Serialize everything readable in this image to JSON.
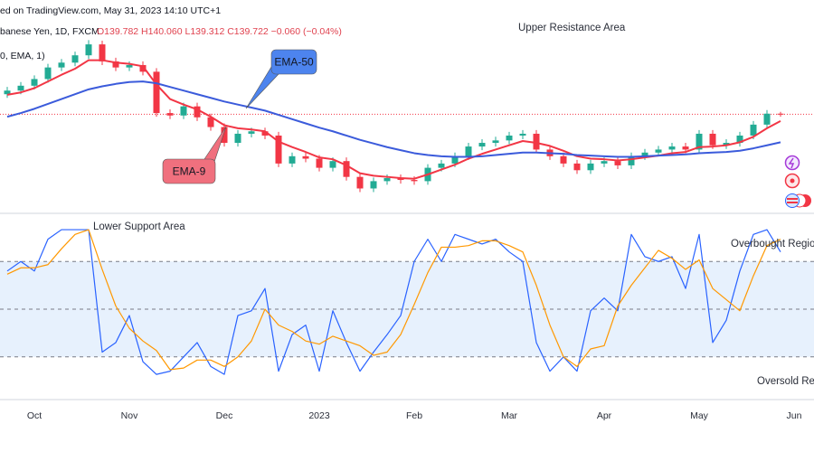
{
  "header": {
    "source": "ed on TradingView.com, May 31, 2023 14:10 UTC+1",
    "symbol": "banese Yen, 1D, FXCM",
    "ohlc": "O139.782 H140.060 L139.312 C139.722 −0.060 (−0.04%)",
    "indicator": "0, EMA, 1)"
  },
  "chart_data": [
    {
      "type": "candlestick",
      "categories": [
        null,
        null,
        "Oct",
        null,
        null,
        null,
        null,
        null,
        null,
        "Nov",
        null,
        null,
        null,
        null,
        null,
        null,
        "Dec",
        null,
        null,
        null,
        null,
        null,
        null,
        "2023",
        null,
        null,
        null,
        null,
        null,
        null,
        "Feb",
        null,
        null,
        null,
        null,
        null,
        null,
        "Mar",
        null,
        null,
        null,
        null,
        null,
        null,
        "Apr",
        null,
        null,
        null,
        null,
        null,
        null,
        "May",
        null,
        null,
        null,
        null,
        null,
        null,
        "Jun"
      ],
      "open": [
        143.0,
        143.6,
        144.4,
        145.5,
        147.4,
        148.2,
        149.4,
        151.2,
        148.4,
        147.4,
        147.8,
        146.7,
        139.9,
        139.5,
        141.0,
        139.2,
        137.6,
        135.0,
        136.5,
        136.9,
        136.2,
        131.6,
        132.8,
        132.4,
        130.9,
        132.0,
        129.4,
        127.5,
        128.7,
        129.2,
        128.9,
        128.7,
        130.9,
        131.6,
        132.8,
        134.4,
        135.0,
        135.4,
        136.2,
        136.5,
        133.9,
        132.8,
        131.6,
        130.5,
        131.6,
        132.0,
        131.3,
        132.8,
        133.4,
        133.9,
        134.4,
        133.9,
        136.5,
        134.6,
        135.0,
        136.2,
        138.0,
        139.8,
        null
      ],
      "high": [
        144.2,
        145.0,
        146.1,
        148.0,
        148.8,
        150.0,
        151.9,
        151.8,
        149.0,
        148.4,
        148.4,
        147.3,
        140.5,
        141.6,
        141.6,
        139.8,
        138.2,
        137.1,
        137.5,
        137.5,
        136.8,
        133.4,
        133.4,
        133.0,
        132.6,
        132.6,
        130.0,
        129.3,
        129.8,
        129.8,
        129.5,
        131.5,
        132.2,
        133.4,
        135.0,
        135.6,
        136.0,
        136.8,
        137.1,
        137.1,
        134.5,
        133.4,
        132.2,
        132.2,
        132.6,
        132.6,
        133.4,
        134.0,
        134.5,
        135.0,
        135.0,
        137.1,
        137.1,
        135.6,
        136.8,
        138.6,
        140.4,
        140.1,
        null
      ],
      "low": [
        142.4,
        143.0,
        143.8,
        144.9,
        146.8,
        147.6,
        148.8,
        147.8,
        146.8,
        146.8,
        146.1,
        139.3,
        138.9,
        138.9,
        138.6,
        137.0,
        134.4,
        134.4,
        135.9,
        135.6,
        131.0,
        131.0,
        131.8,
        130.3,
        130.3,
        128.8,
        126.9,
        126.9,
        128.1,
        128.3,
        128.1,
        128.1,
        130.3,
        131.0,
        132.2,
        133.8,
        134.4,
        134.8,
        135.6,
        133.3,
        132.2,
        131.0,
        129.9,
        129.9,
        131.0,
        130.7,
        130.7,
        132.2,
        132.8,
        133.3,
        133.3,
        133.3,
        134.0,
        134.0,
        134.4,
        135.6,
        137.4,
        139.3,
        null
      ],
      "close": [
        143.6,
        144.4,
        145.5,
        147.4,
        148.2,
        149.4,
        151.2,
        148.4,
        147.4,
        147.8,
        146.7,
        139.9,
        139.5,
        141.0,
        139.2,
        137.6,
        135.0,
        136.5,
        136.9,
        136.2,
        131.6,
        132.8,
        132.4,
        130.9,
        132.0,
        129.4,
        127.5,
        128.7,
        129.2,
        128.9,
        128.7,
        130.9,
        131.6,
        132.8,
        134.4,
        135.0,
        135.4,
        136.2,
        136.5,
        133.9,
        132.8,
        131.6,
        130.5,
        131.6,
        132.0,
        131.3,
        132.8,
        133.4,
        133.9,
        134.4,
        133.9,
        136.5,
        134.6,
        135.0,
        136.2,
        138.0,
        139.8,
        139.7,
        null
      ],
      "up_color": "#22ab94",
      "down_color": "#f23645",
      "ylim": [
        124,
        158.5
      ],
      "price_line": true,
      "series": [
        {
          "name": "EMA-9",
          "color": "#f23645",
          "values": [
            142.9,
            143.3,
            144.0,
            145.1,
            146.2,
            147.2,
            148.6,
            148.6,
            148.2,
            148.0,
            147.6,
            144.6,
            142.2,
            141.3,
            140.5,
            139.3,
            137.9,
            137.4,
            137.2,
            136.9,
            135.2,
            134.3,
            133.5,
            132.6,
            132.3,
            131.3,
            130.0,
            129.6,
            129.4,
            129.2,
            129.1,
            129.8,
            130.6,
            131.4,
            132.4,
            133.2,
            133.9,
            134.6,
            135.3,
            135.0,
            134.5,
            133.7,
            132.8,
            132.4,
            132.3,
            132.1,
            132.3,
            132.6,
            132.9,
            133.3,
            133.5,
            134.3,
            134.4,
            134.6,
            135.1,
            136.0,
            137.4,
            138.6,
            null
          ]
        },
        {
          "name": "EMA-50",
          "color": "#3b5bdb",
          "values": [
            139.3,
            139.9,
            140.6,
            141.4,
            142.2,
            143.0,
            143.8,
            144.3,
            144.7,
            145.0,
            145.1,
            144.8,
            144.2,
            143.6,
            143.0,
            142.4,
            141.8,
            141.3,
            140.8,
            140.3,
            139.6,
            138.9,
            138.2,
            137.5,
            136.9,
            136.2,
            135.5,
            134.9,
            134.3,
            133.8,
            133.3,
            133.0,
            132.8,
            132.7,
            132.7,
            132.8,
            133.0,
            133.2,
            133.4,
            133.4,
            133.3,
            133.2,
            133.0,
            132.9,
            132.8,
            132.7,
            132.7,
            132.8,
            132.9,
            133.0,
            133.1,
            133.3,
            133.4,
            133.5,
            133.7,
            134.1,
            134.6,
            135.1,
            null
          ]
        }
      ],
      "annotations": [
        "Upper Resistance Area"
      ]
    },
    {
      "type": "line",
      "ylim": [
        -4,
        108
      ],
      "levels": [
        20,
        50,
        80
      ],
      "series": [
        {
          "color": "#2962ff",
          "values": [
            74,
            80,
            74,
            94,
            100,
            100,
            100,
            23,
            29,
            46,
            17,
            9,
            11,
            20,
            29,
            14,
            9,
            46,
            49,
            63,
            11,
            34,
            40,
            11,
            49,
            29,
            11,
            23,
            34,
            46,
            80,
            94,
            80,
            97,
            94,
            91,
            94,
            86,
            80,
            29,
            11,
            20,
            11,
            49,
            57,
            49,
            97,
            83,
            80,
            83,
            63,
            97,
            29,
            43,
            74,
            97,
            100,
            86,
            null
          ]
        },
        {
          "color": "#ff9800",
          "values": [
            72,
            76,
            76,
            78,
            88,
            97,
            100,
            75,
            52,
            38,
            30,
            24,
            12,
            13,
            18,
            18,
            14,
            20,
            30,
            50,
            40,
            36,
            30,
            28,
            33,
            30,
            27,
            21,
            23,
            34,
            53,
            73,
            89,
            89,
            90,
            93,
            93,
            90,
            86,
            65,
            40,
            20,
            14,
            25,
            27,
            52,
            65,
            76,
            87,
            82,
            75,
            81,
            63,
            56,
            49,
            71,
            90,
            94,
            null
          ]
        }
      ],
      "annotations": [
        "Lower Support Area",
        "Overbought Regio",
        "Oversold Re"
      ]
    }
  ]
}
